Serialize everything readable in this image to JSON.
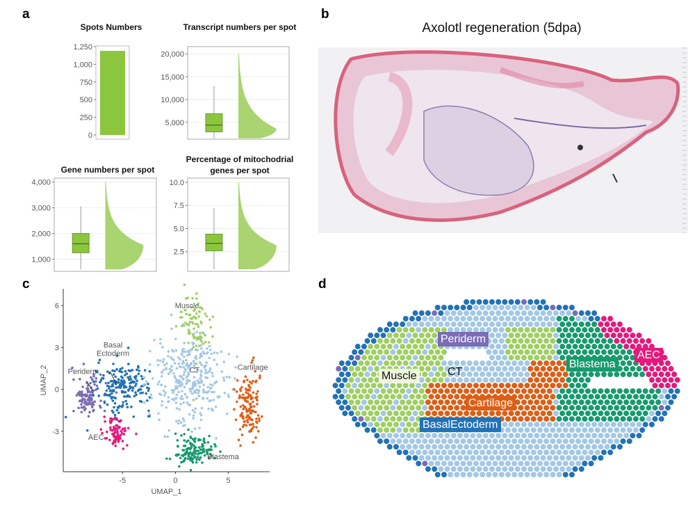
{
  "panels": {
    "a": "a",
    "b": "b",
    "c": "c",
    "d": "d"
  },
  "colors": {
    "bar_green": "#8cc63f",
    "violin_green": "#a9d46f",
    "box_line": "#4a7d1a"
  },
  "chart_data": [
    {
      "type": "bar",
      "title": "Spots Numbers",
      "categories": [
        ""
      ],
      "values": [
        1190
      ],
      "ylim": [
        0,
        1250
      ],
      "ticks": [
        "0",
        "250",
        "500",
        "750",
        "1,000",
        "1,250"
      ],
      "tick_values": [
        0,
        250,
        500,
        750,
        1000,
        1250
      ]
    },
    {
      "type": "box-violin",
      "title": "Transcript numbers per spot",
      "stats": {
        "min": 1500,
        "q1": 2900,
        "median": 4400,
        "q3": 6900,
        "max": 13000,
        "density_mode": 3600,
        "density_max": 20000
      },
      "ylim": [
        1000,
        21000
      ],
      "ticks": [
        "5,000",
        "10,000",
        "15,000",
        "20,000"
      ],
      "tick_values": [
        5000,
        10000,
        15000,
        20000
      ]
    },
    {
      "type": "box-violin",
      "title": "Gene numbers per spot",
      "stats": {
        "min": 600,
        "q1": 1250,
        "median": 1600,
        "q3": 2000,
        "max": 3050,
        "density_mode": 1550,
        "density_max": 4000
      },
      "ylim": [
        500,
        4100
      ],
      "ticks": [
        "1,000",
        "2,000",
        "3,000",
        "4,000"
      ],
      "tick_values": [
        1000,
        2000,
        3000,
        4000
      ]
    },
    {
      "type": "box-violin",
      "title_line1": "Percentage of mitochodrial",
      "title_line2": "genes per spot",
      "stats": {
        "min": 0.6,
        "q1": 2.6,
        "median": 3.4,
        "q3": 4.4,
        "max": 7.2,
        "density_mode": 3.2,
        "density_max": 10.0
      },
      "ylim": [
        0.3,
        10.3
      ],
      "ticks": [
        "2.5",
        "5.0",
        "7.5",
        "10.0"
      ],
      "tick_values": [
        2.5,
        5.0,
        7.5,
        10.0
      ]
    },
    {
      "type": "scatter",
      "xlabel": "UMAP_1",
      "ylabel": "UMAP_2",
      "xlim": [
        -10.6,
        8.9
      ],
      "ylim": [
        -5.9,
        7.2
      ],
      "xticks": [
        "-5",
        "0",
        "5"
      ],
      "xtick_values": [
        -5,
        0,
        5
      ],
      "yticks": [
        "-3",
        "0",
        "3",
        "6"
      ],
      "ytick_values": [
        -3,
        0,
        3,
        6
      ],
      "clusters": [
        {
          "name": "Periderm",
          "label": "Periderm",
          "color": "#7b6cb5",
          "cx": -8.3,
          "cy": -0.5,
          "sx": 0.7,
          "sy": 0.7,
          "n": 110,
          "lx": -8.7,
          "ly": 1.1
        },
        {
          "name": "Basal Ectoderm",
          "label1": "Basal",
          "label2": "Ectoderm",
          "color": "#2272b5",
          "cx": -4.8,
          "cy": 0.2,
          "sx": 1.3,
          "sy": 0.9,
          "n": 190,
          "lx": -5.9,
          "ly": 3.0
        },
        {
          "name": "AEC",
          "label": "AEC",
          "color": "#e5197c",
          "cx": -5.6,
          "cy": -3.1,
          "sx": 0.6,
          "sy": 0.5,
          "n": 80,
          "lx": -7.5,
          "ly": -3.6
        },
        {
          "name": "Muscle",
          "label": "Muscle",
          "color": "#9fcf63",
          "cx": 1.9,
          "cy": 4.5,
          "sx": 0.8,
          "sy": 1.3,
          "n": 90,
          "lx": 1.1,
          "ly": 5.8
        },
        {
          "name": "CT",
          "label": "CT",
          "color": "#a4c8e4",
          "cx": 1.2,
          "cy": 0.8,
          "sx": 1.7,
          "sy": 1.6,
          "n": 330,
          "lx": 1.8,
          "ly": 1.2
        },
        {
          "name": "Cartilage",
          "label": "Cartilage",
          "color": "#dc5f17",
          "cx": 6.9,
          "cy": -1.2,
          "sx": 0.6,
          "sy": 1.2,
          "n": 140,
          "lx": 7.3,
          "ly": 1.4
        },
        {
          "name": "Blastema",
          "label": "Blastema",
          "color": "#179a6e",
          "cx": 1.8,
          "cy": -4.4,
          "sx": 0.9,
          "sy": 0.5,
          "n": 140,
          "lx": 4.5,
          "ly": -5.0
        }
      ]
    }
  ],
  "histology": {
    "title": "Axolotl regeneration (5dpa)"
  },
  "spatial_map": {
    "labels": [
      {
        "text": "Periderm",
        "color": "#7b6cb5"
      },
      {
        "text": "CT",
        "color": "#a4c8e4"
      },
      {
        "text": "Muscle",
        "color": "#9fcf63"
      },
      {
        "text": "Cartilage",
        "color": "#dc5f17"
      },
      {
        "text": "Blastema",
        "color": "#179a6e"
      },
      {
        "text": "AEC",
        "color": "#e5197c"
      },
      {
        "text": "BasalEctoderm",
        "color": "#2272b5"
      }
    ]
  }
}
